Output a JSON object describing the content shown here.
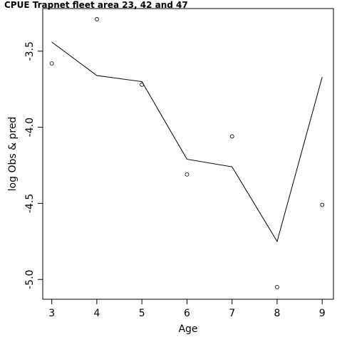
{
  "chart_data": {
    "type": "scatter",
    "title": "CPUE Trapnet fleet area 23, 42 and 47",
    "xlabel": "Age",
    "ylabel": "log Obs & pred",
    "xlim": [
      2.8,
      9.25
    ],
    "ylim": [
      -5.13,
      -3.22
    ],
    "x_ticks": [
      "3",
      "4",
      "5",
      "6",
      "7",
      "8",
      "9"
    ],
    "y_ticks": [
      "-5.0",
      "-4.5",
      "-4.0",
      "-3.5"
    ],
    "grid": false,
    "series": [
      {
        "kind": "points",
        "x": [
          3,
          4,
          5,
          6,
          7,
          8,
          9
        ],
        "values": [
          -3.58,
          -3.29,
          -3.72,
          -4.31,
          -4.06,
          -5.05,
          -4.51
        ]
      },
      {
        "kind": "line",
        "x": [
          3,
          4,
          5,
          6,
          7,
          8,
          9
        ],
        "values": [
          -3.44,
          -3.66,
          -3.7,
          -4.21,
          -4.26,
          -4.75,
          -3.67
        ]
      }
    ]
  }
}
